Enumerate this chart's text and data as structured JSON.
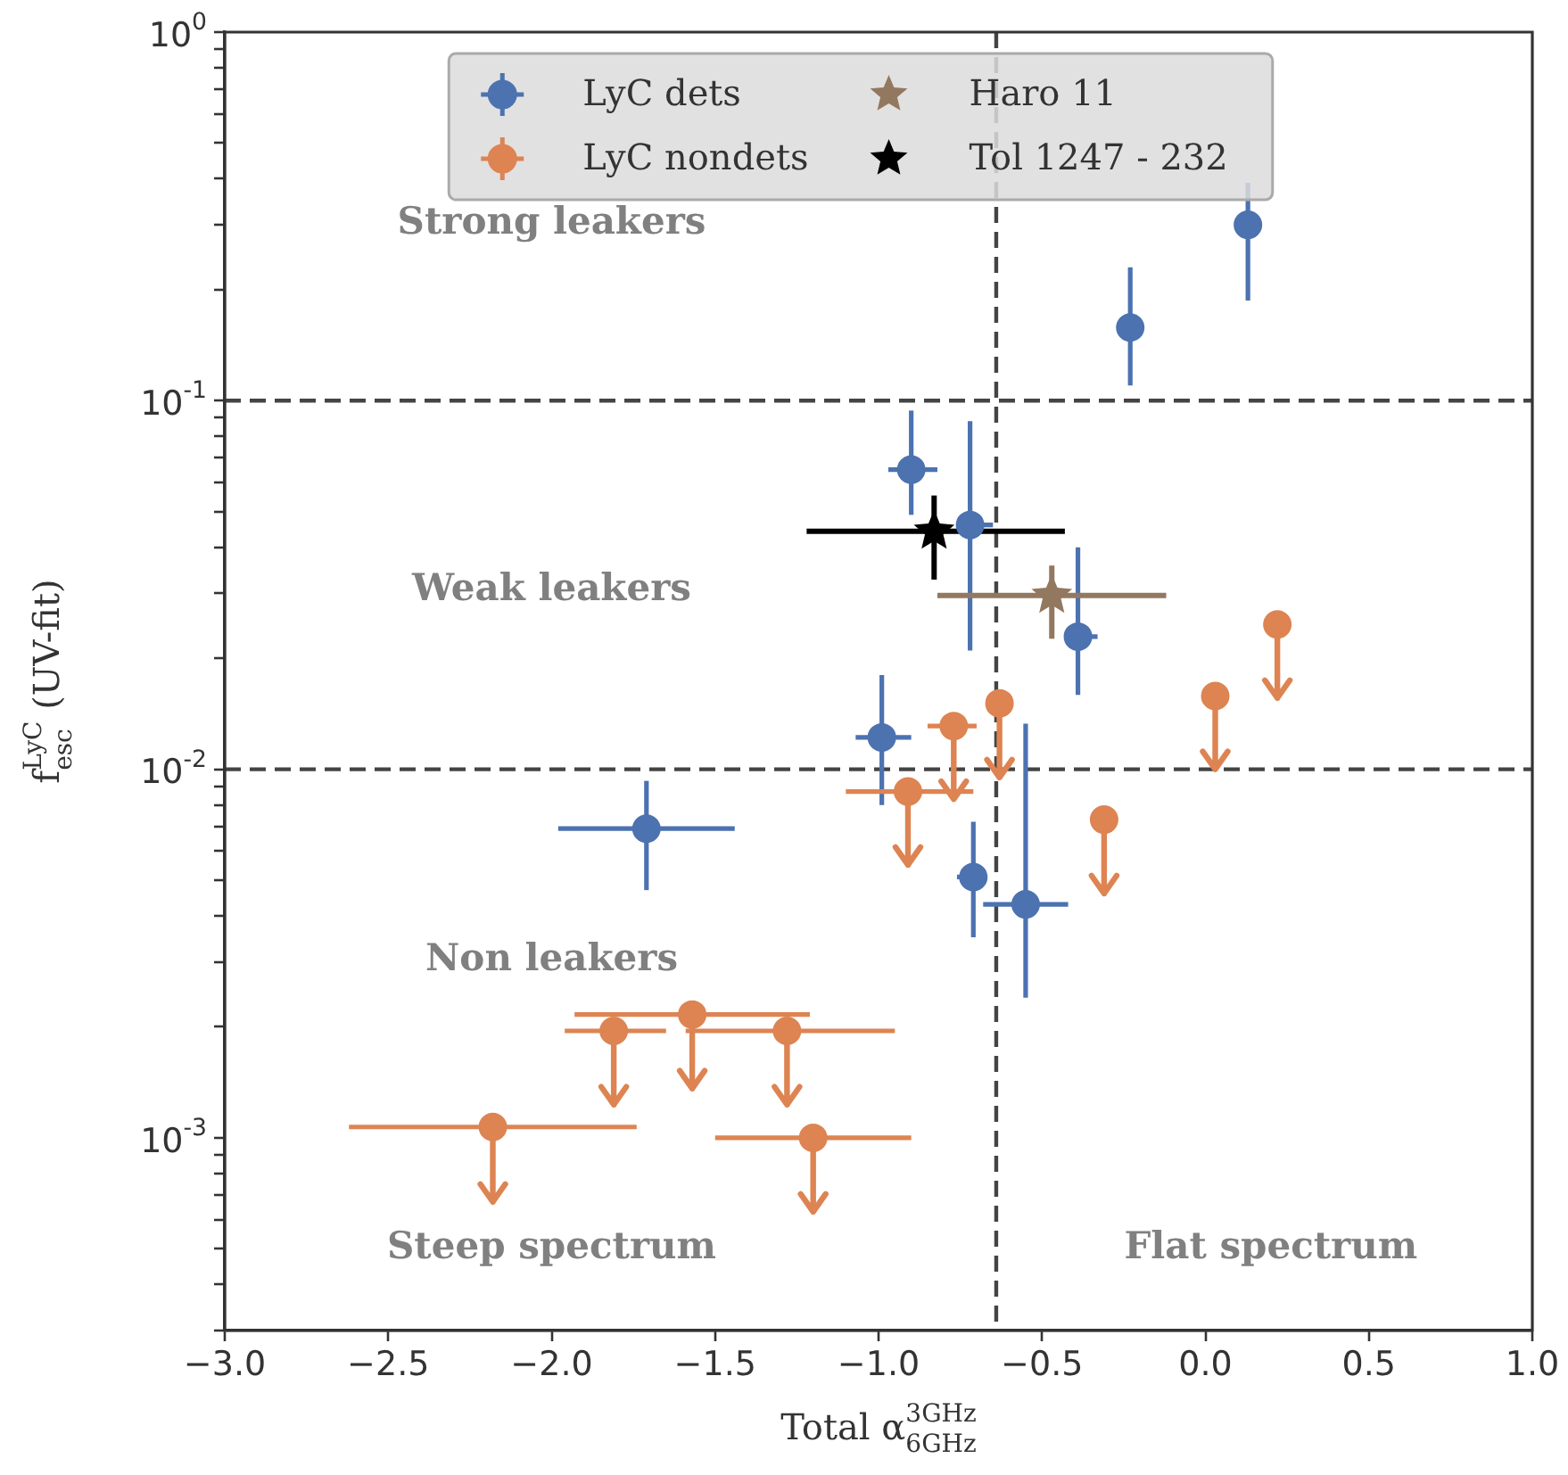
{
  "chart_data": {
    "type": "scatter",
    "xlabel": "Total α$^{3GHz}$$_{6GHz}$",
    "ylabel": "f$^{LyC}$$_{esc}$ (UV-fit)",
    "log": "y",
    "xlim": [
      -3.0,
      1.0
    ],
    "xticks": [
      {
        "value": -3.0,
        "label": "−3.0"
      },
      {
        "value": -2.5,
        "label": "−2.5"
      },
      {
        "value": -2.0,
        "label": "−2.0"
      },
      {
        "value": -1.5,
        "label": "−1.5"
      },
      {
        "value": -1.0,
        "label": "−1.0"
      },
      {
        "value": -0.5,
        "label": "−0.5"
      },
      {
        "value": 0.0,
        "label": "0.0"
      },
      {
        "value": 0.5,
        "label": "0.5"
      },
      {
        "value": 1.0,
        "label": "1.0"
      }
    ],
    "ylim": [
      0.0003,
      1
    ],
    "yticks": [
      {
        "value": 0.0003,
        "label": null
      },
      {
        "value": 0.0004,
        "label": null
      },
      {
        "value": 0.0005,
        "label": null
      },
      {
        "value": 0.0006,
        "label": null
      },
      {
        "value": 0.0007,
        "label": null
      },
      {
        "value": 0.0008,
        "label": null
      },
      {
        "value": 0.0009,
        "label": null
      },
      {
        "value": 0.001,
        "label": "10$^{-3}$"
      },
      {
        "value": 0.002,
        "label": null
      },
      {
        "value": 0.003,
        "label": null
      },
      {
        "value": 0.004,
        "label": null
      },
      {
        "value": 0.005,
        "label": null
      },
      {
        "value": 0.006,
        "label": null
      },
      {
        "value": 0.007,
        "label": null
      },
      {
        "value": 0.008,
        "label": null
      },
      {
        "value": 0.009,
        "label": null
      },
      {
        "value": 0.01,
        "label": "10$^{-2}$"
      },
      {
        "value": 0.02,
        "label": null
      },
      {
        "value": 0.03,
        "label": null
      },
      {
        "value": 0.04,
        "label": null
      },
      {
        "value": 0.05,
        "label": null
      },
      {
        "value": 0.06,
        "label": null
      },
      {
        "value": 0.07,
        "label": null
      },
      {
        "value": 0.08,
        "label": null
      },
      {
        "value": 0.09,
        "label": null
      },
      {
        "value": 0.1,
        "label": "10$^{-1}$"
      },
      {
        "value": 0.2,
        "label": null
      },
      {
        "value": 0.3,
        "label": null
      },
      {
        "value": 0.4,
        "label": null
      },
      {
        "value": 0.5,
        "label": null
      },
      {
        "value": 0.6,
        "label": null
      },
      {
        "value": 0.7,
        "label": null
      },
      {
        "value": 0.8,
        "label": null
      },
      {
        "value": 0.9,
        "label": null
      },
      {
        "value": 1,
        "label": "10$^{0}$"
      }
    ],
    "legend": "top",
    "grid": false,
    "series": [
      {
        "name": "LyC dets",
        "color": "#4c72b0",
        "marker": "circle",
        "x": [
          0.13,
          -0.23,
          -0.9,
          -0.72,
          -0.39,
          -0.99,
          -1.71,
          -0.71,
          -0.55
        ],
        "values": [
          0.3,
          0.158,
          0.065,
          0.046,
          0.0229,
          0.0122,
          0.0069,
          0.0051,
          0.0043
        ],
        "errors": [
          [
            0.187,
            0.39
          ],
          [
            0.11,
            0.23
          ],
          [
            0.049,
            0.094
          ],
          [
            0.021,
            0.088
          ],
          [
            0.0159,
            0.04
          ],
          [
            0.008,
            0.018
          ],
          [
            0.0047,
            0.0093
          ],
          [
            0.0035,
            0.0072
          ],
          [
            0.0024,
            0.0133
          ]
        ],
        "xerrors": [
          null,
          null,
          [
            -0.97,
            -0.82
          ],
          [
            -0.76,
            -0.65
          ],
          [
            -0.43,
            -0.33
          ],
          [
            -1.07,
            -0.9
          ],
          [
            -1.98,
            -1.44
          ],
          [
            -0.76,
            -0.67
          ],
          [
            -0.68,
            -0.42
          ]
        ]
      },
      {
        "name": "LyC nondets",
        "color": "#dd8452",
        "marker": "circle",
        "x": [
          0.22,
          0.03,
          -0.63,
          -0.77,
          -0.91,
          -0.31,
          -1.81,
          -1.57,
          -1.28,
          -2.18,
          -1.2
        ],
        "values": [
          0.0247,
          0.0158,
          0.0151,
          0.0131,
          0.0087,
          0.0073,
          0.00195,
          0.00216,
          0.00195,
          0.00107,
          0.001
        ],
        "errors": [
          [
            0.0156,
            0.0247
          ],
          [
            0.01,
            0.0158
          ],
          [
            0.0095,
            0.0151
          ],
          [
            0.0083,
            0.0131
          ],
          [
            0.0055,
            0.0087
          ],
          [
            0.0046,
            0.0073
          ],
          [
            0.00123,
            0.00195
          ],
          [
            0.00136,
            0.00216
          ],
          [
            0.00123,
            0.00195
          ],
          [
            0.00067,
            0.00107
          ],
          [
            0.00063,
            0.001
          ]
        ],
        "xerrors": [
          null,
          null,
          null,
          [
            -0.85,
            -0.7
          ],
          [
            -1.1,
            -0.71
          ],
          null,
          [
            -1.96,
            -1.65
          ],
          [
            -1.93,
            -1.21
          ],
          [
            -1.59,
            -0.95
          ],
          [
            -2.62,
            -1.74
          ],
          [
            -1.5,
            -0.9
          ]
        ]
      },
      {
        "name": "Haro 11",
        "color": "#937860",
        "marker": "star",
        "x": [
          -0.47
        ],
        "values": [
          0.0296
        ],
        "errors": [
          [
            0.0226,
            0.0357
          ]
        ],
        "xerrors": [
          [
            -0.82,
            -0.12
          ]
        ]
      },
      {
        "name": "Tol 1247 - 232",
        "color": "#000000",
        "marker": "star",
        "x": [
          -0.83
        ],
        "values": [
          0.0442
        ],
        "errors": [
          [
            0.0327,
            0.0553
          ]
        ],
        "xerrors": [
          [
            -1.22,
            -0.43
          ]
        ]
      }
    ],
    "ref_lines": [
      {
        "axis": "y",
        "value": 0.1,
        "line_style": "dashed",
        "color": "#444444"
      },
      {
        "axis": "y",
        "value": 0.01,
        "line_style": "dashed",
        "color": "#444444"
      },
      {
        "axis": "x",
        "value": -0.64,
        "line_style": "dashed",
        "color": "#444444"
      }
    ],
    "annotations": [
      "Strong leakers",
      "Weak leakers",
      "Non leakers",
      "Steep spectrum",
      "Flat spectrum"
    ]
  }
}
